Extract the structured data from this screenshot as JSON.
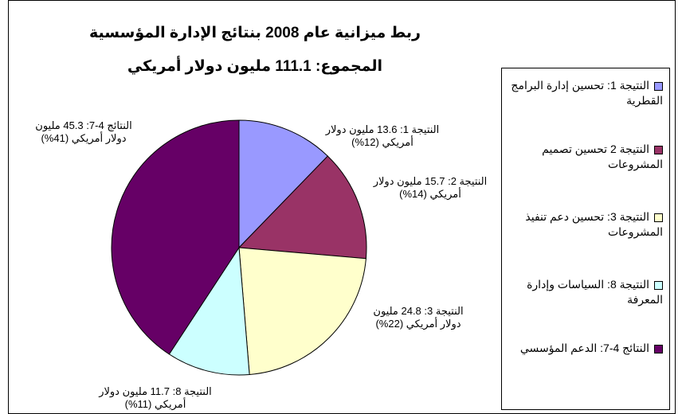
{
  "chart_data": {
    "type": "pie",
    "title": "ربط ميزانية عام 2008 بنتائج الإدارة المؤسسية",
    "subtitle": "المجموع: 111.1 مليون دولار أمريكي",
    "categories": [
      "النتيجة 1: تحسين إدارة البرامج القطرية",
      "النتيجة 2 تحسين تصميم المشروعات",
      "النتيجة 3: تحسين دعم تنفيذ المشروعات",
      "النتيجة 8: السياسات وإدارة المعرفة",
      "النتائج 4-7: الدعم المؤسسي"
    ],
    "values": [
      13.6,
      15.7,
      24.8,
      11.7,
      45.3
    ],
    "value_labels": [
      "النتيجة 1: 13.6 مليون دولار أمريكي (12%)",
      "النتيجة 2: 15.7 مليون دولار أمريكي (14%)",
      "النتيجة 3: 24.8 مليون دولار أمريكي (22%)",
      "النتيجة 8: 11.7 مليون دولار أمريكي (11%)",
      "النتائج 4-7: 45.3 مليون دولار أمريكي (41%)"
    ],
    "colors": [
      "#9999ff",
      "#993366",
      "#ffffcc",
      "#ccffff",
      "#660066"
    ],
    "legend": "right"
  }
}
